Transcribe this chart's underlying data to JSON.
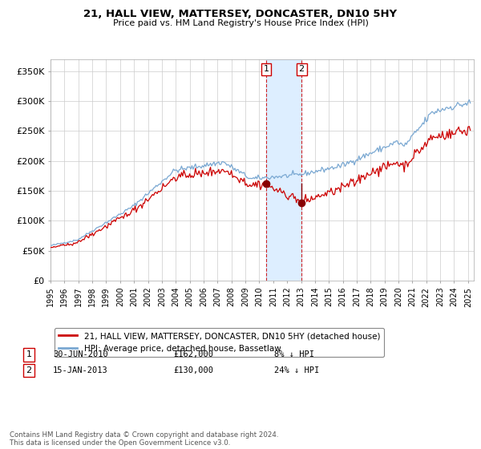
{
  "title": "21, HALL VIEW, MATTERSEY, DONCASTER, DN10 5HY",
  "subtitle": "Price paid vs. HM Land Registry's House Price Index (HPI)",
  "sale1_label": "30-JUN-2010",
  "sale1_price": 162000,
  "sale1_pct": "8% ↓ HPI",
  "sale2_label": "15-JAN-2013",
  "sale2_price": 130000,
  "sale2_pct": "24% ↓ HPI",
  "legend1": "21, HALL VIEW, MATTERSEY, DONCASTER, DN10 5HY (detached house)",
  "legend2": "HPI: Average price, detached house, Bassetlaw",
  "footer": "Contains HM Land Registry data © Crown copyright and database right 2024.\nThis data is licensed under the Open Government Licence v3.0.",
  "hpi_color": "#7aa8d2",
  "price_color": "#cc0000",
  "sale_marker_color": "#880000",
  "vline_color": "#cc0000",
  "shade_color": "#ddeeff",
  "grid_color": "#cccccc",
  "bg_color": "#ffffff",
  "ylim": [
    0,
    370000
  ],
  "yticks": [
    0,
    50000,
    100000,
    150000,
    200000,
    250000,
    300000,
    350000
  ]
}
